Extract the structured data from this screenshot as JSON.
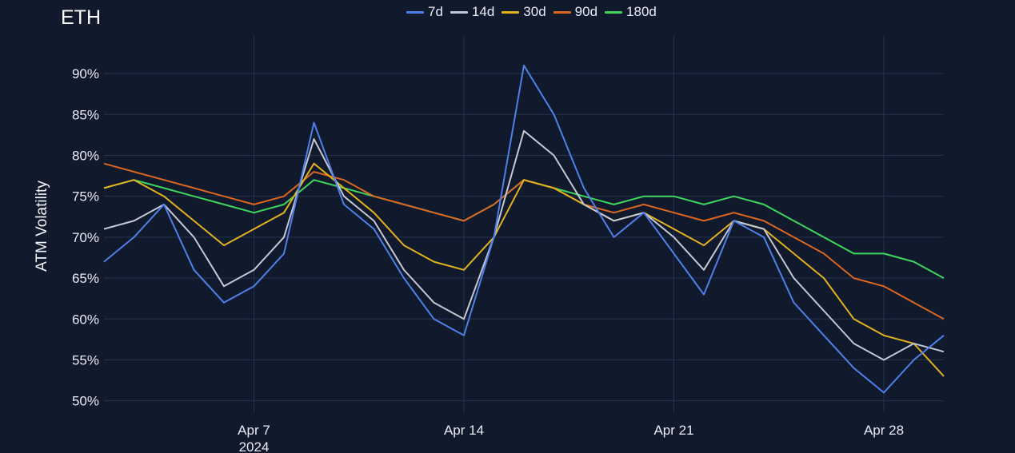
{
  "chart_data": {
    "type": "line",
    "title": "ETH",
    "xlabel": "",
    "ylabel": "ATM Volatility",
    "x_ticks": [
      {
        "date": "2024-04-07",
        "label": "Apr 7",
        "sublabel": "2024"
      },
      {
        "date": "2024-04-14",
        "label": "Apr 14",
        "sublabel": ""
      },
      {
        "date": "2024-04-21",
        "label": "Apr 21",
        "sublabel": ""
      },
      {
        "date": "2024-04-28",
        "label": "Apr 28",
        "sublabel": ""
      }
    ],
    "xlim": [
      "2024-04-02",
      "2024-04-30"
    ],
    "ylim": [
      48.6,
      94.6
    ],
    "y_ticks": [
      50,
      55,
      60,
      65,
      70,
      75,
      80,
      85,
      90
    ],
    "y_tick_labels": [
      "50%",
      "55%",
      "60%",
      "65%",
      "70%",
      "75%",
      "80%",
      "85%",
      "90%"
    ],
    "grid": true,
    "legend_position": "top-center",
    "x": [
      "2024-04-02",
      "2024-04-03",
      "2024-04-04",
      "2024-04-05",
      "2024-04-06",
      "2024-04-07",
      "2024-04-08",
      "2024-04-09",
      "2024-04-10",
      "2024-04-11",
      "2024-04-12",
      "2024-04-13",
      "2024-04-14",
      "2024-04-15",
      "2024-04-16",
      "2024-04-17",
      "2024-04-18",
      "2024-04-19",
      "2024-04-20",
      "2024-04-21",
      "2024-04-22",
      "2024-04-23",
      "2024-04-24",
      "2024-04-25",
      "2024-04-26",
      "2024-04-27",
      "2024-04-28",
      "2024-04-29",
      "2024-04-30"
    ],
    "series": [
      {
        "name": "7d",
        "color": "#4f7fe8",
        "values": [
          67,
          70,
          74,
          66,
          62,
          64,
          68,
          84,
          74,
          71,
          65,
          60,
          58,
          70,
          91,
          85,
          76,
          70,
          73,
          68,
          63,
          72,
          70,
          62,
          58,
          54,
          51,
          55,
          58
        ]
      },
      {
        "name": "14d",
        "color": "#c4c8d4",
        "values": [
          71,
          72,
          74,
          70,
          64,
          66,
          70,
          82,
          75,
          72,
          66,
          62,
          60,
          70,
          83,
          80,
          74,
          72,
          73,
          70,
          66,
          72,
          71,
          65,
          61,
          57,
          55,
          57,
          56
        ]
      },
      {
        "name": "30d",
        "color": "#e2b120",
        "values": [
          76,
          77,
          75,
          72,
          69,
          71,
          73,
          79,
          76,
          73,
          69,
          67,
          66,
          70,
          77,
          76,
          74,
          72,
          73,
          71,
          69,
          72,
          71,
          68,
          65,
          60,
          58,
          57,
          53
        ]
      },
      {
        "name": "90d",
        "color": "#dc6621",
        "values": [
          79,
          78,
          77,
          76,
          75,
          74,
          75,
          78,
          77,
          75,
          74,
          73,
          72,
          74,
          77,
          76,
          74,
          73,
          74,
          73,
          72,
          73,
          72,
          70,
          68,
          65,
          64,
          62,
          60
        ]
      },
      {
        "name": "180d",
        "color": "#3fd65e",
        "values": [
          76,
          77,
          76,
          75,
          74,
          73,
          74,
          77,
          76,
          75,
          74,
          73,
          72,
          74,
          77,
          76,
          75,
          74,
          75,
          75,
          74,
          75,
          74,
          72,
          70,
          68,
          68,
          67,
          65
        ]
      }
    ]
  }
}
